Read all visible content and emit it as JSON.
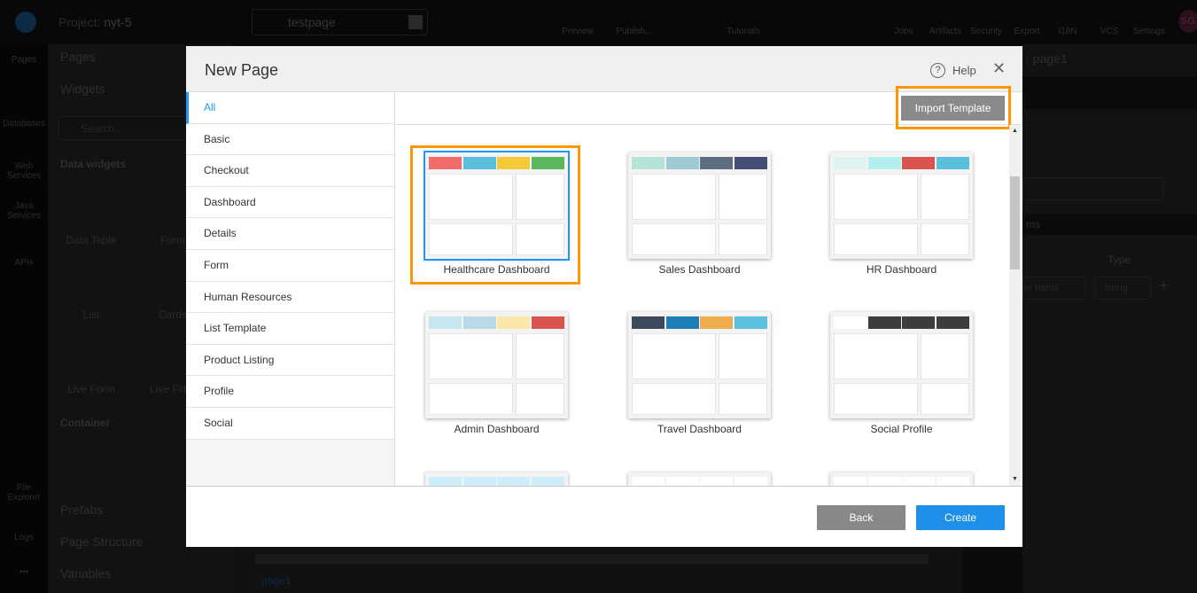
{
  "topbar": {
    "project_label": "Project:",
    "project_name": "nyt-5",
    "page_name": "testpage",
    "items": [
      {
        "label": "Preview",
        "icon": "play-icon"
      },
      {
        "label": "Publish...",
        "icon": "publish-icon"
      },
      {
        "label": "Tutorials",
        "icon": "youtube-icon"
      },
      {
        "label": "Jobs",
        "icon": "jobs-icon"
      },
      {
        "label": "Artifacts",
        "icon": "download-icon"
      },
      {
        "label": "Security",
        "icon": "shield-icon"
      },
      {
        "label": "Export",
        "icon": "upload-icon"
      },
      {
        "label": "I18N",
        "icon": "translate-icon"
      },
      {
        "label": "VCS",
        "icon": "git-icon"
      },
      {
        "label": "Settings",
        "icon": "gear-icon"
      }
    ],
    "avatar": "SG"
  },
  "rail": [
    {
      "label": "Pages"
    },
    {
      "label": "Databases"
    },
    {
      "label": "Web Services"
    },
    {
      "label": "Java Services"
    },
    {
      "label": "APIs"
    },
    {
      "label": "File Explorer"
    },
    {
      "label": "Logs"
    },
    {
      "label": "•••"
    }
  ],
  "panel": {
    "pages": "Pages",
    "widgets": "Widgets",
    "search_placeholder": "Search...",
    "data_widgets": "Data widgets",
    "widgets_list": [
      "Data Table",
      "Form",
      "List",
      "Cards",
      "Live Form",
      "Live Filter"
    ],
    "container": "Container",
    "prefabs": "Prefabs",
    "page_structure": "Page Structure",
    "variables": "Variables"
  },
  "right": {
    "title": ": page1",
    "params": "ms",
    "type": "Type",
    "name_placeholder": "er name",
    "type_value": "string"
  },
  "canvas": {
    "tab": "page1"
  },
  "modal": {
    "title": "New Page",
    "help": "Help",
    "import": "Import Template",
    "back": "Back",
    "create": "Create",
    "categories": [
      "All",
      "Basic",
      "Checkout",
      "Dashboard",
      "Details",
      "Form",
      "Human Resources",
      "List Template",
      "Product Listing",
      "Profile",
      "Social"
    ],
    "selected_category": "All",
    "templates": [
      {
        "name": "Healthcare Dashboard",
        "selected": true,
        "colors": [
          "#f36c6c",
          "#5bc0de",
          "#f5c93a",
          "#5cb85c"
        ]
      },
      {
        "name": "Sales Dashboard",
        "colors": [
          "#b4e3d8",
          "#9ecad3",
          "#5d6e82",
          "#454f75"
        ]
      },
      {
        "name": "HR Dashboard",
        "colors": [
          "#e0f3f3",
          "#b4efef",
          "#d9534f",
          "#5bc0de"
        ]
      },
      {
        "name": "Admin Dashboard",
        "colors": [
          "#c7e6f0",
          "#b7d9e8",
          "#fbe7a8",
          "#d9534f"
        ]
      },
      {
        "name": "Travel Dashboard",
        "colors": [
          "#3d4a5c",
          "#1e7fb8",
          "#f0ad4e",
          "#5bc0de"
        ]
      },
      {
        "name": "Social Profile",
        "colors": [
          "#ffffff",
          "#3d3d3d",
          "#3d3d3d",
          "#3d3d3d"
        ]
      },
      {
        "name": "",
        "colors": [
          "#cdeef8",
          "#cdeef8",
          "#cdeef8",
          "#cdeef8"
        ]
      },
      {
        "name": "",
        "colors": [
          "#ffffff",
          "#ffffff",
          "#ffffff",
          "#ffffff"
        ]
      },
      {
        "name": "",
        "colors": [
          "#ffffff",
          "#ffffff",
          "#ffffff",
          "#ffffff"
        ]
      }
    ]
  }
}
